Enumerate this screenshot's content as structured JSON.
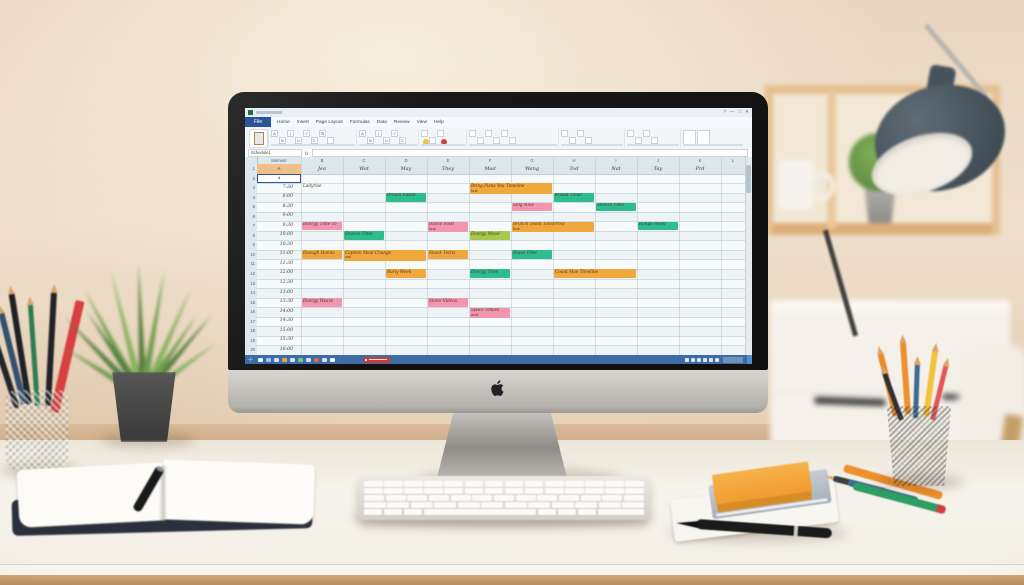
{
  "screen": {
    "titlebar": {
      "window_controls": [
        "?",
        "—",
        "□",
        "✕"
      ]
    },
    "ribbon": {
      "file_tab": "File",
      "tabs": [
        "Home",
        "Insert",
        "Page Layout",
        "Formulas",
        "Data",
        "Review",
        "View",
        "Help"
      ],
      "glyphs": {
        "font_a_large": "A",
        "font_a_small": "A",
        "bold": "B",
        "italic": "I",
        "underline": "U",
        "align": "≡",
        "sum": "Σ",
        "sort": "⇅"
      }
    },
    "formula_bar": {
      "name_box": "Schedule1",
      "fx_label": "fx"
    },
    "grid": {
      "corner_label": "Moment",
      "col_letters": [
        "B",
        "C",
        "D",
        "E",
        "F",
        "G",
        "H",
        "I",
        "J",
        "K",
        "L"
      ],
      "a1_label": "A",
      "selected_cell_label": "4",
      "day_headers": [
        "Jea",
        "Wat",
        "May",
        "They",
        "Mad",
        "Wang",
        "Tod",
        "Nat",
        "Tay",
        "Prd"
      ],
      "times": [
        "7:30",
        "8:00",
        "8:30",
        "9:00",
        "9:30",
        "10:00",
        "10:30",
        "11:00",
        "11:30",
        "12:00",
        "12:30",
        "13:00",
        "13:30",
        "14:00",
        "14:30",
        "15:00",
        "15:30",
        "16:00"
      ],
      "row_count": 20
    },
    "events": [
      {
        "row": 0,
        "col": 1,
        "span": 1,
        "color": "none",
        "text": "Ladyrise"
      },
      {
        "row": 0,
        "col": 5,
        "span": 2,
        "color": "orange",
        "text": "Bring Plans You Timeline",
        "text2": "law"
      },
      {
        "row": 1,
        "col": 3,
        "span": 1,
        "color": "teal",
        "text": "Dream Sweet"
      },
      {
        "row": 1,
        "col": 7,
        "span": 1,
        "color": "teal",
        "text": "Knead Timer"
      },
      {
        "row": 2,
        "col": 6,
        "span": 1,
        "color": "pink",
        "text": "Sing Now"
      },
      {
        "row": 2,
        "col": 8,
        "span": 1,
        "color": "teal",
        "text": "Sneeze Time"
      },
      {
        "row": 4,
        "col": 1,
        "span": 1,
        "color": "pink",
        "text": "Energy Time To"
      },
      {
        "row": 4,
        "col": 4,
        "span": 1,
        "color": "pink",
        "text": "Dance Food",
        "text2": "law"
      },
      {
        "row": 4,
        "col": 6,
        "span": 2,
        "color": "orange",
        "text": "Brunch Swim Tomorrow",
        "text2": "law"
      },
      {
        "row": 4,
        "col": 9,
        "span": 1,
        "color": "teal",
        "text": "Range Wood"
      },
      {
        "row": 5,
        "col": 2,
        "span": 1,
        "color": "teal",
        "text": "Snooze Time"
      },
      {
        "row": 5,
        "col": 5,
        "span": 1,
        "color": "lime",
        "text": "Energy Mood"
      },
      {
        "row": 7,
        "col": 1,
        "span": 1,
        "color": "orange",
        "text": "Enough Hanna"
      },
      {
        "row": 7,
        "col": 2,
        "span": 2,
        "color": "orange",
        "text": "Caption Meal Change",
        "text2": "cat"
      },
      {
        "row": 7,
        "col": 4,
        "span": 1,
        "color": "orange",
        "text": "Snack Tetris"
      },
      {
        "row": 7,
        "col": 6,
        "span": 1,
        "color": "teal",
        "text": "Erase Time"
      },
      {
        "row": 9,
        "col": 3,
        "span": 1,
        "color": "orange",
        "text": "Burly Week"
      },
      {
        "row": 9,
        "col": 5,
        "span": 1,
        "color": "teal",
        "text": "Energy Time"
      },
      {
        "row": 9,
        "col": 7,
        "span": 2,
        "color": "orange",
        "text": "Count Mae Timeline"
      },
      {
        "row": 12,
        "col": 1,
        "span": 1,
        "color": "pink",
        "text": "Energy Weave"
      },
      {
        "row": 12,
        "col": 4,
        "span": 1,
        "color": "pink",
        "text": "Snore Videos"
      },
      {
        "row": 13,
        "col": 5,
        "span": 1,
        "color": "pink",
        "text": "Space Smiles",
        "text2": "and"
      }
    ],
    "colors": {
      "orange": "#f0a83d",
      "teal": "#2ebd8e",
      "pink": "#f295ae",
      "lime": "#a6c84d",
      "header_tan": "#efc089",
      "none": "transparent",
      "taskbar": "#3d6da4",
      "badge_red": "#c2403a",
      "file_blue": "#2a5699"
    },
    "taskbar": {
      "left_icon_colors": [
        "#e8f0f8",
        "#9fc3e8",
        "#cfe0ef",
        "#e8a33d",
        "#cfe0ef",
        "#7fc47f",
        "#cfe0ef",
        "#d86a5a",
        "#cfe0ef",
        "#eef3f8"
      ],
      "tray_icon_count": 6
    }
  },
  "desk": {
    "palette": {
      "wall": "#ecdcc9",
      "desk": "#f3efe7",
      "desk_edge": "#c9a177",
      "bezel": "#141414",
      "chin": "#cfccc7",
      "stand": "#a8a5a0",
      "lamp": "#46525c",
      "shelf_wood": "#e3b988",
      "mug": "#f6f3ee",
      "plant_green": "#6f9c4f",
      "pot_dark": "#474747",
      "pot_gray": "#a9a7a2",
      "notebook_cover": "#2a303d",
      "page": "#fcfbf8",
      "sticky_orange": "#f4a73f",
      "gray_notebook": "#b5bec4",
      "pen_red": "#d84040",
      "pen_green": "#2f9e62",
      "pen_orange": "#ef8f2d",
      "pen_blue": "#3f6c8e",
      "pencil_black": "#23252a",
      "pencil_blue": "#35506e",
      "pencil_green": "#2e7d4f",
      "mesh_black": "#2c2c2c",
      "keyboard": "#e4e2dd",
      "key": "#fbfaf8"
    }
  }
}
